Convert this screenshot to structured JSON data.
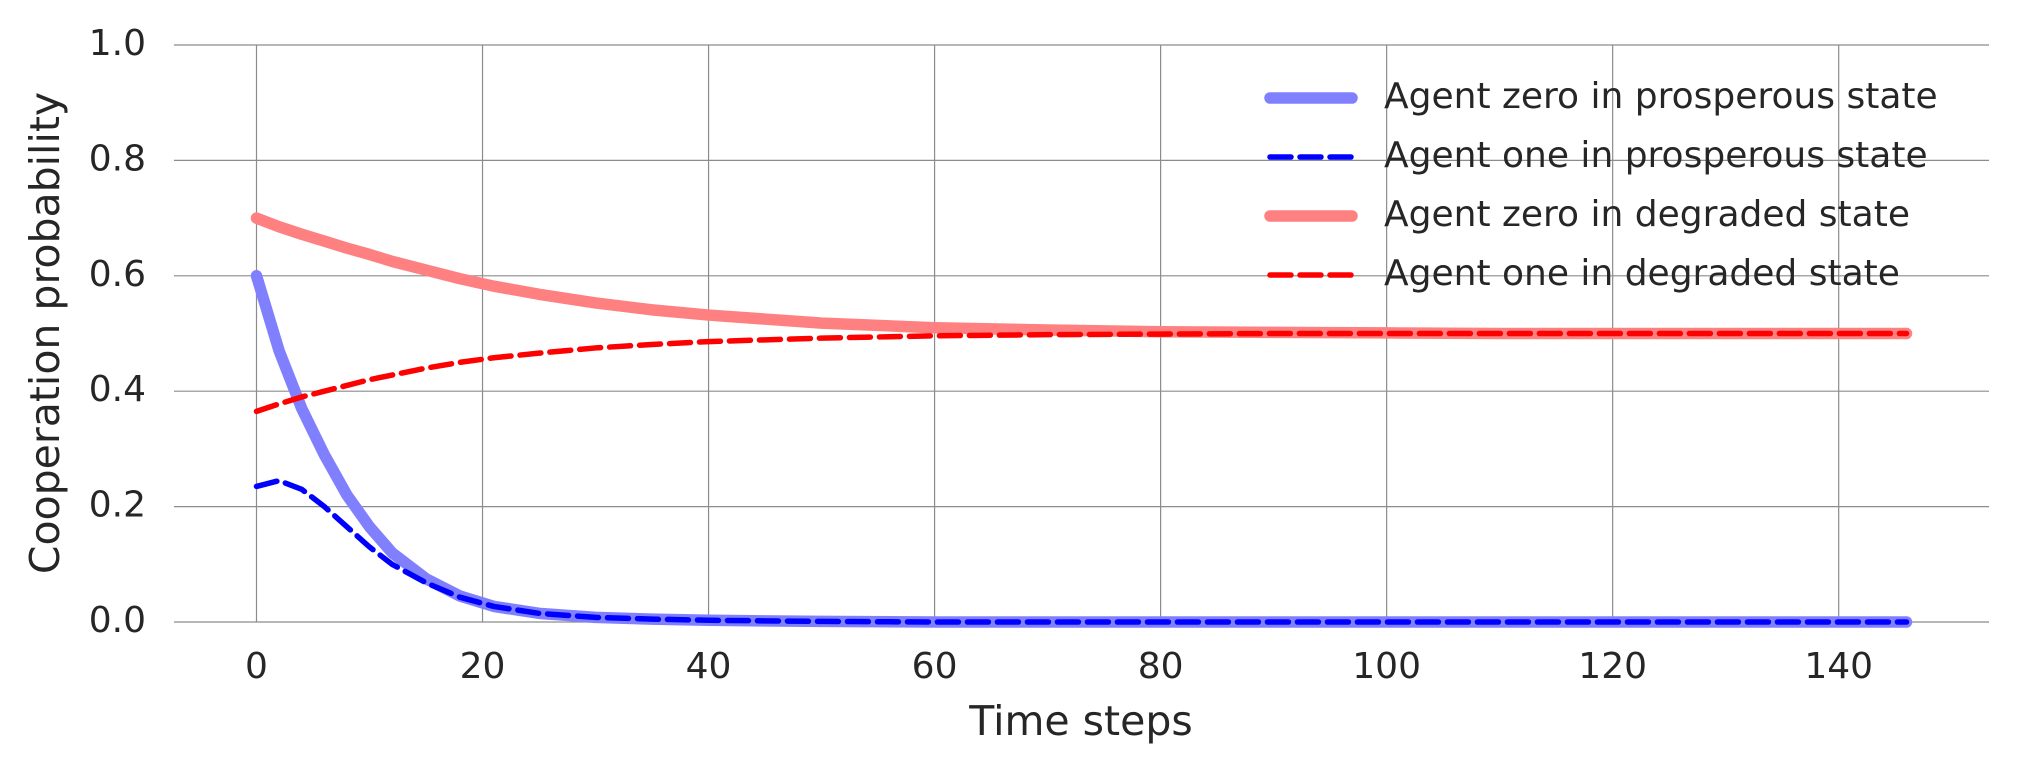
{
  "chart_data": {
    "type": "line",
    "xlabel": "Time steps",
    "ylabel": "Cooperation probability",
    "x": [
      0,
      2,
      4,
      6,
      8,
      10,
      12,
      15,
      18,
      21,
      25,
      30,
      35,
      40,
      50,
      60,
      70,
      80,
      90,
      100,
      110,
      120,
      130,
      146
    ],
    "series": [
      {
        "name": "Agent zero in prosperous state",
        "color": "#8080ff",
        "linestyle": "solid",
        "values": [
          0.6,
          0.47,
          0.37,
          0.29,
          0.22,
          0.165,
          0.12,
          0.075,
          0.045,
          0.027,
          0.015,
          0.008,
          0.005,
          0.003,
          0.001,
          0,
          0,
          0,
          0,
          0,
          0,
          0,
          0,
          0
        ]
      },
      {
        "name": "Agent one in prosperous state",
        "color": "#0000ff",
        "linestyle": "dashed",
        "values": [
          0.235,
          0.245,
          0.23,
          0.2,
          0.165,
          0.13,
          0.1,
          0.068,
          0.043,
          0.027,
          0.015,
          0.008,
          0.005,
          0.003,
          0.001,
          0,
          0,
          0,
          0,
          0,
          0,
          0,
          0,
          0
        ]
      },
      {
        "name": "Agent zero in degraded state",
        "color": "#ff8080",
        "linestyle": "solid",
        "values": [
          0.7,
          0.685,
          0.672,
          0.66,
          0.648,
          0.637,
          0.625,
          0.61,
          0.595,
          0.582,
          0.568,
          0.553,
          0.541,
          0.532,
          0.518,
          0.51,
          0.506,
          0.503,
          0.502,
          0.501,
          0.5,
          0.5,
          0.5,
          0.5
        ]
      },
      {
        "name": "Agent one in degraded state",
        "color": "#ff0000",
        "linestyle": "dashed",
        "values": [
          0.365,
          0.378,
          0.39,
          0.4,
          0.41,
          0.42,
          0.428,
          0.44,
          0.45,
          0.458,
          0.466,
          0.475,
          0.481,
          0.486,
          0.492,
          0.496,
          0.498,
          0.499,
          0.5,
          0.5,
          0.5,
          0.5,
          0.5,
          0.5
        ]
      }
    ],
    "xlim": [
      -7.3,
      153.3
    ],
    "xticks": [
      0,
      20,
      40,
      60,
      80,
      100,
      120,
      140
    ],
    "ylim": [
      0,
      1
    ],
    "yticks": [
      {
        "value": 0,
        "label": "0.0"
      },
      {
        "value": 0.2,
        "label": "0.2"
      },
      {
        "value": 0.4,
        "label": "0.4"
      },
      {
        "value": 0.6,
        "label": "0.6"
      },
      {
        "value": 0.8,
        "label": "0.8"
      },
      {
        "value": 1,
        "label": "1.0"
      }
    ],
    "grid": true,
    "legend": "upper right"
  }
}
